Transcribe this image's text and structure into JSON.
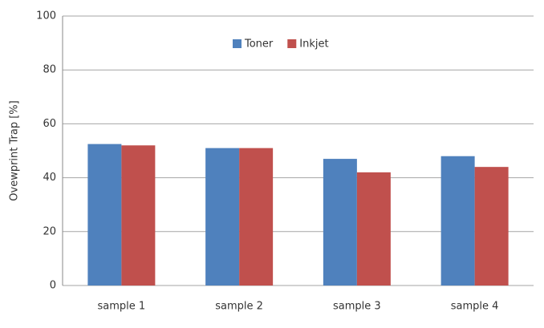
{
  "chart_data": {
    "type": "bar",
    "y_label": "Ovewprint Trap [%]",
    "categories": [
      "sample 1",
      "sample 2",
      "sample 3",
      "sample 4"
    ],
    "series": [
      {
        "name": "Toner",
        "color": "#4f81bd",
        "values": [
          52.5,
          51,
          47,
          48
        ]
      },
      {
        "name": "Inkjet",
        "color": "#c0504d",
        "values": [
          52,
          51,
          42,
          44
        ]
      }
    ],
    "ylim": [
      0,
      100
    ],
    "yticks": [
      0,
      20,
      40,
      60,
      80,
      100
    ],
    "grid": true,
    "legend": "top"
  }
}
